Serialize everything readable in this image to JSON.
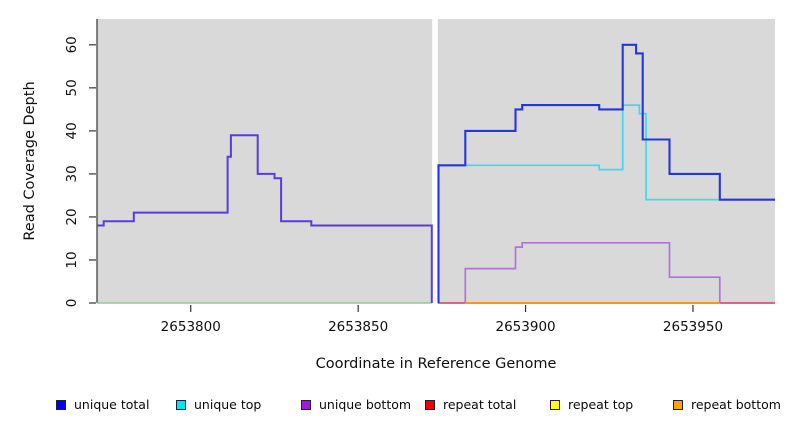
{
  "chart_data": {
    "type": "line",
    "subtype": "step-coverage-plot",
    "title": "",
    "xlabel": "Coordinate in Reference Genome",
    "ylabel": "Read Coverage Depth",
    "xlim": [
      2653772,
      2653974.5
    ],
    "ylim": [
      0,
      66
    ],
    "x_ticks": [
      2653800,
      2653850,
      2653900,
      2653950
    ],
    "x_tick_labels": [
      "2653800",
      "2653850",
      "2653900",
      "2653950"
    ],
    "y_ticks": [
      0,
      10,
      20,
      30,
      40,
      50,
      60
    ],
    "y_tick_labels": [
      "0",
      "10",
      "20",
      "30",
      "40",
      "50",
      "60"
    ],
    "grid": false,
    "panel_bg": "#d9d9d9",
    "axis_color": "#333333",
    "gap": {
      "x0": 2653872.1,
      "x1": 2653873.8,
      "color": "#ffffff"
    },
    "series": [
      {
        "name": "zero-line-left-green",
        "color": "#90cb90",
        "width": 1.5,
        "points": [
          [
            2653772,
            0
          ],
          [
            2653872,
            0
          ]
        ]
      },
      {
        "name": "zero-line-right-crimson-a",
        "color": "#cf3a63",
        "width": 1.6,
        "points": [
          [
            2653873.8,
            0
          ],
          [
            2653882,
            0
          ]
        ]
      },
      {
        "name": "zero-line-right-crimson-b",
        "color": "#cf3a63",
        "width": 1.6,
        "points": [
          [
            2653958,
            0
          ],
          [
            2653974.5,
            0
          ]
        ]
      },
      {
        "name": "repeat-bottom-orange",
        "color": "#ff9514",
        "width": 2,
        "points": [
          [
            2653882,
            0
          ],
          [
            2653958,
            0
          ]
        ]
      },
      {
        "name": "unique-top-cyan",
        "color": "#3fd9e8",
        "width": 1.7,
        "points": [
          [
            2653874,
            32
          ],
          [
            2653922,
            32
          ],
          [
            2653922,
            31
          ],
          [
            2653929,
            31
          ],
          [
            2653929,
            46
          ],
          [
            2653934,
            46
          ],
          [
            2653934,
            44
          ],
          [
            2653936,
            44
          ],
          [
            2653936,
            24
          ],
          [
            2653974.5,
            24
          ]
        ]
      },
      {
        "name": "unique-bottom-purple",
        "color": "#b272db",
        "width": 1.7,
        "points": [
          [
            2653882,
            0
          ],
          [
            2653882,
            8
          ],
          [
            2653897,
            8
          ],
          [
            2653897,
            13
          ],
          [
            2653899,
            13
          ],
          [
            2653899,
            14
          ],
          [
            2653943,
            14
          ],
          [
            2653943,
            6
          ],
          [
            2653958,
            6
          ],
          [
            2653958,
            0
          ]
        ]
      },
      {
        "name": "unique-total-left-violet",
        "color": "#5a3be0",
        "width": 2,
        "points": [
          [
            2653772,
            18
          ],
          [
            2653774,
            18
          ],
          [
            2653774,
            19
          ],
          [
            2653783,
            19
          ],
          [
            2653783,
            21
          ],
          [
            2653811,
            21
          ],
          [
            2653811,
            34
          ],
          [
            2653812,
            34
          ],
          [
            2653812,
            39
          ],
          [
            2653820,
            39
          ],
          [
            2653820,
            30
          ],
          [
            2653825,
            30
          ],
          [
            2653825,
            29
          ],
          [
            2653827,
            29
          ],
          [
            2653827,
            19
          ],
          [
            2653836,
            19
          ],
          [
            2653836,
            18
          ],
          [
            2653872,
            18
          ],
          [
            2653872,
            0
          ]
        ]
      },
      {
        "name": "unique-total-right-blue",
        "color": "#2636db",
        "width": 2.1,
        "points": [
          [
            2653874,
            0
          ],
          [
            2653874,
            32
          ],
          [
            2653882,
            32
          ],
          [
            2653882,
            40
          ],
          [
            2653897,
            40
          ],
          [
            2653897,
            45
          ],
          [
            2653899,
            45
          ],
          [
            2653899,
            46
          ],
          [
            2653922,
            46
          ],
          [
            2653922,
            45
          ],
          [
            2653929,
            45
          ],
          [
            2653929,
            60
          ],
          [
            2653933,
            60
          ],
          [
            2653933,
            58
          ],
          [
            2653935,
            58
          ],
          [
            2653935,
            38
          ],
          [
            2653943,
            38
          ],
          [
            2653943,
            30
          ],
          [
            2653958,
            30
          ],
          [
            2653958,
            24
          ],
          [
            2653974.5,
            24
          ]
        ]
      }
    ],
    "legend": [
      {
        "label": "unique total",
        "color": "#0000ee"
      },
      {
        "label": "unique top",
        "color": "#00e5f0"
      },
      {
        "label": "unique bottom",
        "color": "#a21ad8"
      },
      {
        "label": "repeat total",
        "color": "#ee0000"
      },
      {
        "label": "repeat top",
        "color": "#ffff00"
      },
      {
        "label": "repeat bottom",
        "color": "#ffa200"
      }
    ],
    "legend_position": "bottom"
  }
}
